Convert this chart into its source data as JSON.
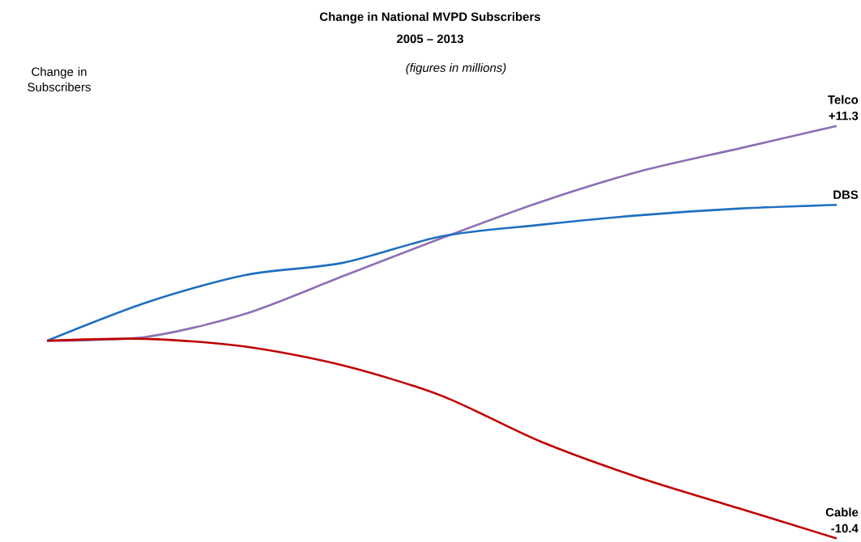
{
  "chart_data": {
    "type": "line",
    "title": "Change in National MVPD Subscribers",
    "subtitle": "2005 – 2013",
    "ylabel": "Change in Subscribers",
    "annotations": [
      "(figures in millions)"
    ],
    "categories": [
      null,
      null,
      null,
      null,
      null,
      null,
      null,
      null,
      null
    ],
    "tick_labels": false,
    "marker": "none",
    "line_style": "solid",
    "series": [
      {
        "name": "Telco",
        "color": "#8e6fb5",
        "values": [
          0,
          0.2,
          1.4,
          3.4,
          5.4,
          7.3,
          8.9,
          10.1,
          11.3
        ],
        "value_labels": [
          null,
          null,
          null,
          null,
          null,
          null,
          null,
          null,
          "+11.3"
        ]
      },
      {
        "name": "DBS",
        "color": "#1f6fc0",
        "values": [
          0,
          2.0,
          3.45,
          4.1,
          5.5,
          6.1,
          6.6,
          6.95,
          7.15
        ],
        "value_labels": [
          null,
          null,
          null,
          null,
          null,
          null,
          null,
          null,
          null
        ]
      },
      {
        "name": "Cable",
        "color": "#c00000",
        "values": [
          0,
          0.1,
          -0.3,
          -1.3,
          -2.9,
          -5.3,
          -7.2,
          -8.8,
          -10.4
        ],
        "value_labels": [
          null,
          null,
          null,
          null,
          null,
          null,
          null,
          null,
          "-10.4"
        ]
      }
    ]
  }
}
